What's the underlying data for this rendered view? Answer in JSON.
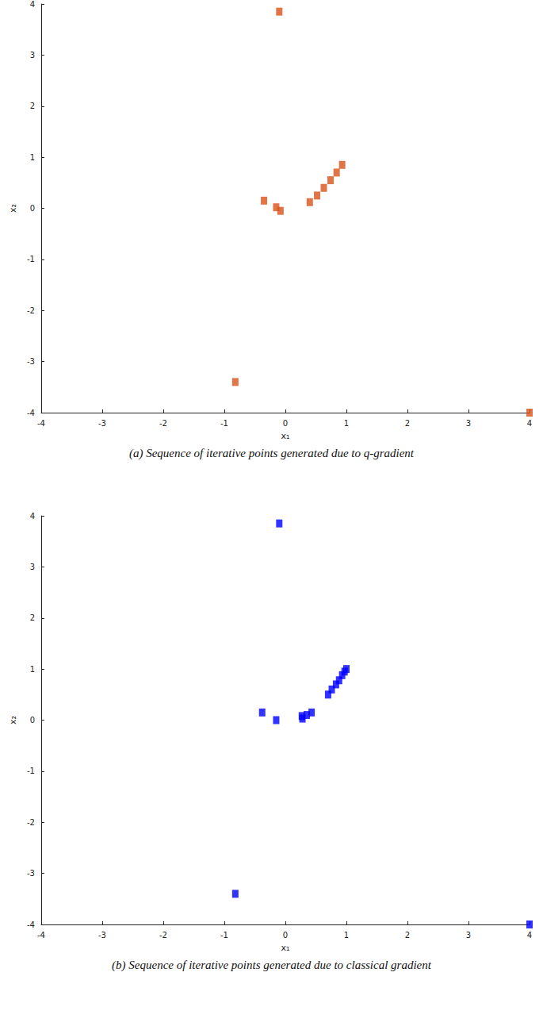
{
  "chart_data": [
    {
      "type": "scatter",
      "title": "(a) Sequence of iterative points generated due to q-gradient",
      "x_label": "x₁",
      "y_label": "x₂",
      "x": [
        -0.1,
        -0.35,
        -0.15,
        -0.08,
        0.4,
        0.52,
        0.63,
        0.74,
        0.84,
        0.93,
        -0.82,
        4
      ],
      "values": [
        3.85,
        0.15,
        0.02,
        -0.05,
        0.12,
        0.25,
        0.4,
        0.55,
        0.7,
        0.85,
        -3.4,
        -4
      ],
      "color": "#d95319",
      "marker": "square",
      "xlim": [
        -4,
        4
      ],
      "ylim": [
        -4,
        4
      ],
      "xticks": [
        -4,
        -3,
        -2,
        -1,
        0,
        1,
        2,
        3,
        4
      ],
      "yticks": [
        -4,
        -3,
        -2,
        -1,
        0,
        1,
        2,
        3,
        4
      ],
      "grid": false
    },
    {
      "type": "scatter",
      "title": "(b) Sequence of iterative points generated due to classical gradient",
      "x_label": "x₁",
      "y_label": "x₂",
      "x": [
        -0.1,
        -0.38,
        -0.15,
        0.27,
        0.28,
        0.35,
        0.43,
        0.7,
        0.76,
        0.83,
        0.88,
        0.93,
        0.97,
        1.0,
        -0.82,
        4
      ],
      "values": [
        3.85,
        0.15,
        0.0,
        0.08,
        0.03,
        0.1,
        0.15,
        0.5,
        0.6,
        0.7,
        0.78,
        0.88,
        0.95,
        1.0,
        -3.4,
        -4
      ],
      "color": "#0000ff",
      "marker": "square",
      "xlim": [
        -4,
        4
      ],
      "ylim": [
        -4,
        4
      ],
      "xticks": [
        -4,
        -3,
        -2,
        -1,
        0,
        1,
        2,
        3,
        4
      ],
      "yticks": [
        -4,
        -3,
        -2,
        -1,
        0,
        1,
        2,
        3,
        4
      ],
      "grid": false
    }
  ]
}
